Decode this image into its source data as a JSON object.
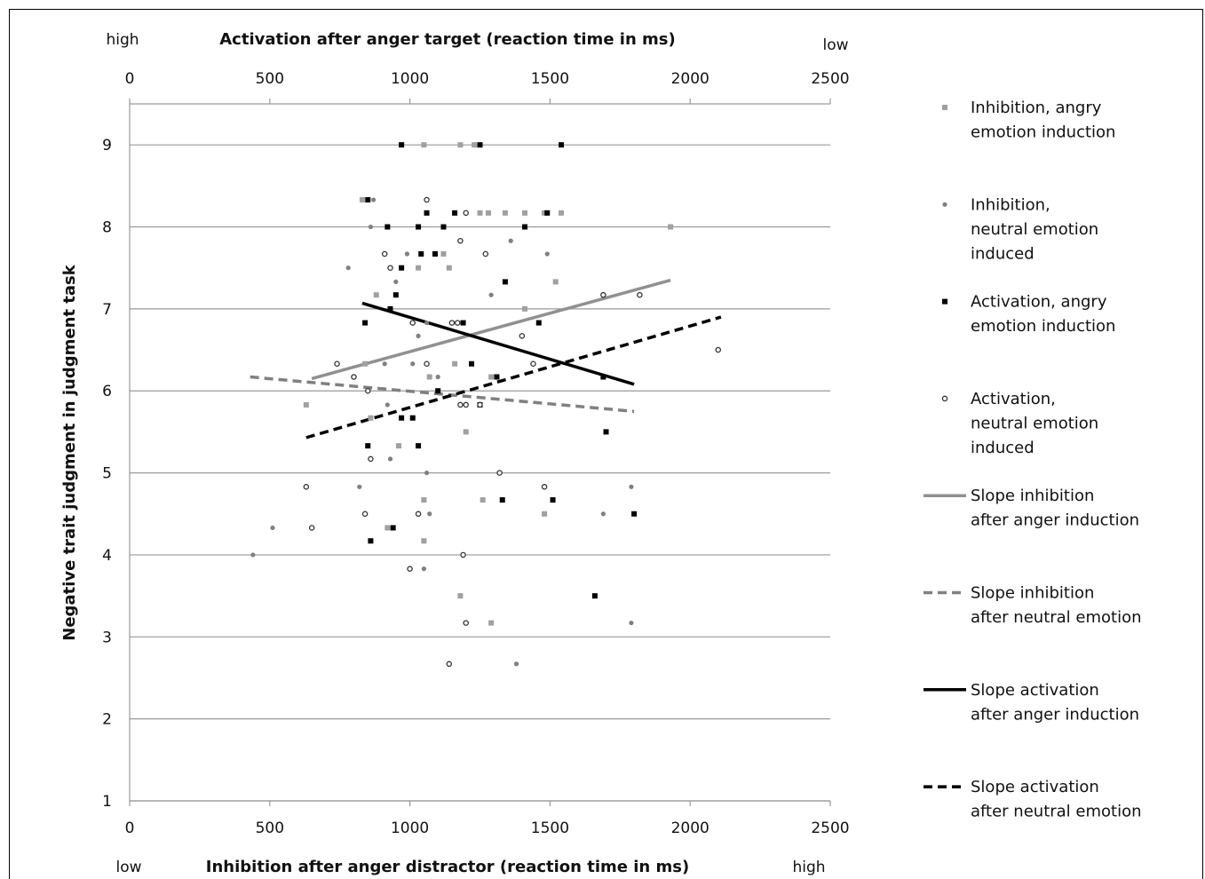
{
  "chart_data": {
    "type": "scatter",
    "top_axis": {
      "title": "Activation after anger target (reaction time in ms)",
      "left_label": "high",
      "right_label": "low",
      "range": [
        0,
        2500
      ],
      "ticks": [
        "0",
        "500",
        "1000",
        "1500",
        "2000",
        "2500"
      ]
    },
    "bottom_axis": {
      "title": "Inhibition after anger distractor (reaction time in ms)",
      "left_label": "low",
      "right_label": "high",
      "range": [
        0,
        2500
      ],
      "ticks": [
        "0",
        "500",
        "1000",
        "1500",
        "2000",
        "2500"
      ]
    },
    "y_axis": {
      "title": "Negative trait judgment in judgment task",
      "range": [
        1,
        9.5
      ],
      "ticks": [
        "1",
        "2",
        "3",
        "4",
        "5",
        "6",
        "7",
        "8",
        "9"
      ]
    },
    "grid": true,
    "legend_position": "right",
    "series": [
      {
        "name": "Inhibition, angry emotion induction",
        "color": "#a0a0a0",
        "marker": "square",
        "points": [
          [
            1050,
            9
          ],
          [
            1180,
            9
          ],
          [
            1230,
            9
          ],
          [
            830,
            8.33
          ],
          [
            1250,
            8.17
          ],
          [
            1280,
            8.17
          ],
          [
            1340,
            8.17
          ],
          [
            1410,
            8.17
          ],
          [
            1480,
            8.17
          ],
          [
            1540,
            8.17
          ],
          [
            1930,
            8
          ],
          [
            1120,
            7.67
          ],
          [
            1030,
            7.5
          ],
          [
            1140,
            7.5
          ],
          [
            880,
            7.17
          ],
          [
            1520,
            7.33
          ],
          [
            1410,
            7
          ],
          [
            840,
            6.33
          ],
          [
            1160,
            6.33
          ],
          [
            1290,
            6.17
          ],
          [
            1070,
            6.17
          ],
          [
            630,
            5.83
          ],
          [
            860,
            5.67
          ],
          [
            1200,
            5.5
          ],
          [
            960,
            5.33
          ],
          [
            1050,
            4.67
          ],
          [
            1260,
            4.67
          ],
          [
            1480,
            4.5
          ],
          [
            920,
            4.33
          ],
          [
            1050,
            4.17
          ],
          [
            1180,
            3.5
          ],
          [
            1290,
            3.17
          ]
        ]
      },
      {
        "name": "Inhibition, neutral emotion induced",
        "color": "#808080",
        "marker": "dot",
        "points": [
          [
            440,
            4
          ],
          [
            510,
            4.33
          ],
          [
            780,
            7.5
          ],
          [
            870,
            8.33
          ],
          [
            860,
            8
          ],
          [
            990,
            7.67
          ],
          [
            950,
            7.33
          ],
          [
            1060,
            6.83
          ],
          [
            1030,
            6.67
          ],
          [
            1010,
            6.33
          ],
          [
            910,
            6.33
          ],
          [
            920,
            5.83
          ],
          [
            930,
            5.17
          ],
          [
            820,
            4.83
          ],
          [
            1060,
            5
          ],
          [
            1070,
            4.5
          ],
          [
            1050,
            3.83
          ],
          [
            1290,
            7.17
          ],
          [
            1360,
            7.83
          ],
          [
            1490,
            7.67
          ],
          [
            1380,
            2.67
          ],
          [
            1690,
            4.5
          ],
          [
            1790,
            4.83
          ],
          [
            1790,
            3.17
          ],
          [
            1100,
            6.17
          ]
        ]
      },
      {
        "name": "Activation, angry emotion induction",
        "color": "#000000",
        "marker": "square",
        "points": [
          [
            970,
            9
          ],
          [
            1250,
            9
          ],
          [
            1540,
            9
          ],
          [
            850,
            8.33
          ],
          [
            1060,
            8.17
          ],
          [
            1160,
            8.17
          ],
          [
            1490,
            8.17
          ],
          [
            920,
            8
          ],
          [
            1030,
            8
          ],
          [
            1120,
            8
          ],
          [
            1410,
            8
          ],
          [
            970,
            7.5
          ],
          [
            1040,
            7.67
          ],
          [
            1090,
            7.67
          ],
          [
            950,
            7.17
          ],
          [
            1340,
            7.33
          ],
          [
            840,
            6.83
          ],
          [
            1190,
            6.83
          ],
          [
            1460,
            6.83
          ],
          [
            930,
            7
          ],
          [
            1220,
            6.33
          ],
          [
            1310,
            6.17
          ],
          [
            1690,
            6.17
          ],
          [
            1100,
            6
          ],
          [
            970,
            5.67
          ],
          [
            1010,
            5.67
          ],
          [
            1250,
            5.83
          ],
          [
            850,
            5.33
          ],
          [
            1030,
            5.33
          ],
          [
            1700,
            5.5
          ],
          [
            1330,
            4.67
          ],
          [
            1510,
            4.67
          ],
          [
            1800,
            4.5
          ],
          [
            940,
            4.33
          ],
          [
            860,
            4.17
          ],
          [
            1660,
            3.5
          ]
        ]
      },
      {
        "name": "Activation, neutral emotion induced",
        "color": "#333333",
        "marker": "open-circle",
        "points": [
          [
            1060,
            8.33
          ],
          [
            1200,
            8.17
          ],
          [
            1180,
            7.83
          ],
          [
            910,
            7.67
          ],
          [
            930,
            7.5
          ],
          [
            1270,
            7.67
          ],
          [
            1010,
            6.83
          ],
          [
            1150,
            6.83
          ],
          [
            1170,
            6.83
          ],
          [
            740,
            6.33
          ],
          [
            1060,
            6.33
          ],
          [
            800,
            6.17
          ],
          [
            850,
            6
          ],
          [
            1180,
            5.83
          ],
          [
            1200,
            5.83
          ],
          [
            1250,
            5.83
          ],
          [
            860,
            5.17
          ],
          [
            630,
            4.83
          ],
          [
            840,
            4.5
          ],
          [
            1030,
            4.5
          ],
          [
            650,
            4.33
          ],
          [
            1320,
            5
          ],
          [
            1480,
            4.83
          ],
          [
            1400,
            6.67
          ],
          [
            1440,
            6.33
          ],
          [
            1690,
            7.17
          ],
          [
            1820,
            7.17
          ],
          [
            1000,
            3.83
          ],
          [
            1190,
            4
          ],
          [
            1200,
            3.17
          ],
          [
            1140,
            2.67
          ],
          [
            2100,
            6.5
          ]
        ]
      }
    ],
    "trend_lines": [
      {
        "name": "Slope inhibition after anger induction",
        "color": "#909090",
        "style": "solid",
        "x": [
          650,
          1930
        ],
        "y": [
          6.15,
          7.35
        ]
      },
      {
        "name": "Slope inhibition after neutral emotion",
        "color": "#808080",
        "style": "dashed",
        "x": [
          430,
          1800
        ],
        "y": [
          6.17,
          5.75
        ]
      },
      {
        "name": "Slope activation after anger induction",
        "color": "#000000",
        "style": "solid",
        "x": [
          830,
          1800
        ],
        "y": [
          7.07,
          6.08
        ]
      },
      {
        "name": "Slope activation after neutral emotion",
        "color": "#000000",
        "style": "dashed",
        "x": [
          630,
          2110
        ],
        "y": [
          5.43,
          6.9
        ]
      }
    ]
  }
}
